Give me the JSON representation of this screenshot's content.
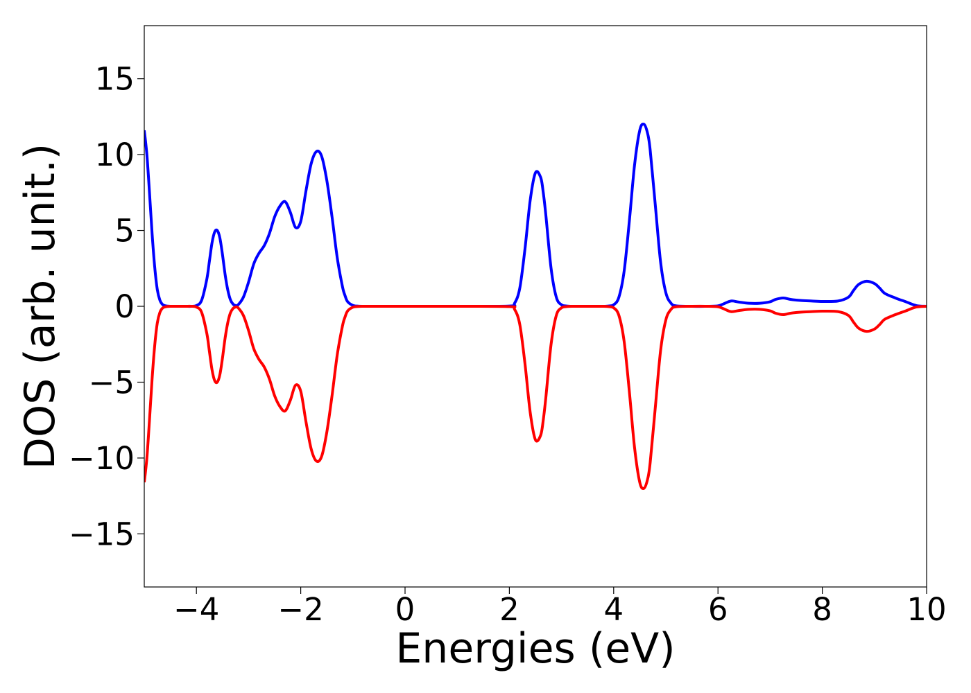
{
  "chart_data": {
    "type": "line",
    "title": "",
    "xlabel": "Energies (eV)",
    "ylabel": "DOS (arb. unit.)",
    "xlim": [
      -5,
      10
    ],
    "ylim": [
      -18.5,
      18.5
    ],
    "xticks": [
      -4,
      -2,
      0,
      2,
      4,
      6,
      8,
      10
    ],
    "xtick_labels": [
      "−4",
      "−2",
      "0",
      "2",
      "4",
      "6",
      "8",
      "10"
    ],
    "yticks": [
      -15,
      -10,
      -5,
      0,
      5,
      10,
      15
    ],
    "ytick_labels": [
      "−15",
      "−10",
      "−5",
      "0",
      "5",
      "10",
      "15"
    ],
    "grid": false,
    "legend": "none",
    "series": [
      {
        "color": "#0000ff",
        "x": [
          -5.0,
          -4.95,
          -4.9,
          -4.85,
          -4.8,
          -4.75,
          -4.7,
          -4.65,
          -4.6,
          -4.55,
          -4.5,
          -4.4,
          -4.3,
          -4.2,
          -4.1,
          -4.0,
          -3.9,
          -3.8,
          -3.75,
          -3.7,
          -3.65,
          -3.6,
          -3.55,
          -3.5,
          -3.45,
          -3.4,
          -3.35,
          -3.3,
          -3.25,
          -3.2,
          -3.1,
          -3.0,
          -2.9,
          -2.8,
          -2.7,
          -2.6,
          -2.5,
          -2.4,
          -2.3,
          -2.2,
          -2.1,
          -2.0,
          -1.9,
          -1.8,
          -1.7,
          -1.6,
          -1.5,
          -1.4,
          -1.3,
          -1.2,
          -1.15,
          -1.1,
          -1.0,
          -0.9,
          -0.8,
          -0.7,
          -0.6,
          -0.5,
          0.0,
          1.0,
          2.0,
          2.1,
          2.2,
          2.3,
          2.4,
          2.5,
          2.6,
          2.65,
          2.7,
          2.8,
          2.9,
          3.0,
          3.1,
          3.2,
          3.5,
          3.8,
          3.9,
          4.0,
          4.1,
          4.2,
          4.3,
          4.4,
          4.5,
          4.58,
          4.65,
          4.7,
          4.8,
          4.9,
          5.0,
          5.1,
          5.2,
          5.5,
          5.8,
          6.0,
          6.1,
          6.25,
          6.4,
          6.6,
          6.8,
          7.0,
          7.1,
          7.25,
          7.4,
          7.6,
          7.8,
          8.0,
          8.3,
          8.5,
          8.6,
          8.7,
          8.85,
          9.0,
          9.1,
          9.2,
          9.4,
          9.6,
          9.8,
          10.0
        ],
        "y": [
          11.6,
          10.0,
          7.5,
          4.8,
          2.6,
          1.1,
          0.4,
          0.12,
          0.04,
          0.01,
          0.0,
          0.0,
          0.0,
          0.0,
          0.0,
          0.05,
          0.4,
          1.8,
          3.0,
          4.2,
          4.9,
          5.0,
          4.5,
          3.4,
          2.1,
          1.1,
          0.45,
          0.15,
          0.05,
          0.1,
          0.6,
          1.6,
          2.8,
          3.5,
          4.0,
          4.8,
          5.9,
          6.6,
          6.9,
          6.2,
          5.2,
          5.6,
          7.6,
          9.4,
          10.2,
          9.9,
          8.3,
          5.9,
          3.2,
          1.3,
          0.7,
          0.3,
          0.06,
          0.01,
          0.0,
          0.0,
          0.0,
          0.0,
          0.0,
          0.0,
          0.02,
          0.2,
          1.2,
          3.8,
          7.0,
          8.8,
          8.5,
          7.5,
          6.0,
          2.5,
          0.6,
          0.1,
          0.02,
          0.0,
          0.0,
          0.0,
          0.02,
          0.1,
          0.6,
          2.3,
          5.6,
          9.3,
          11.6,
          12.0,
          11.4,
          10.3,
          6.6,
          2.9,
          0.9,
          0.2,
          0.03,
          0.0,
          0.0,
          0.03,
          0.15,
          0.35,
          0.28,
          0.2,
          0.2,
          0.3,
          0.45,
          0.55,
          0.45,
          0.38,
          0.35,
          0.32,
          0.35,
          0.6,
          1.05,
          1.45,
          1.65,
          1.5,
          1.2,
          0.85,
          0.55,
          0.3,
          0.05,
          0.0
        ]
      },
      {
        "color": "#ff0000",
        "x": [
          -5.0,
          -4.95,
          -4.9,
          -4.85,
          -4.8,
          -4.75,
          -4.7,
          -4.65,
          -4.6,
          -4.55,
          -4.5,
          -4.4,
          -4.3,
          -4.2,
          -4.1,
          -4.0,
          -3.9,
          -3.8,
          -3.75,
          -3.7,
          -3.65,
          -3.6,
          -3.55,
          -3.5,
          -3.45,
          -3.4,
          -3.35,
          -3.3,
          -3.25,
          -3.2,
          -3.1,
          -3.0,
          -2.9,
          -2.8,
          -2.7,
          -2.6,
          -2.5,
          -2.4,
          -2.3,
          -2.2,
          -2.1,
          -2.0,
          -1.9,
          -1.8,
          -1.7,
          -1.6,
          -1.5,
          -1.4,
          -1.3,
          -1.2,
          -1.15,
          -1.1,
          -1.0,
          -0.9,
          -0.8,
          -0.7,
          -0.6,
          -0.5,
          0.0,
          1.0,
          2.0,
          2.1,
          2.2,
          2.3,
          2.4,
          2.5,
          2.6,
          2.65,
          2.7,
          2.8,
          2.9,
          3.0,
          3.1,
          3.2,
          3.5,
          3.8,
          3.9,
          4.0,
          4.1,
          4.2,
          4.3,
          4.4,
          4.5,
          4.58,
          4.65,
          4.7,
          4.8,
          4.9,
          5.0,
          5.1,
          5.2,
          5.5,
          5.8,
          6.0,
          6.1,
          6.25,
          6.4,
          6.6,
          6.8,
          7.0,
          7.1,
          7.25,
          7.4,
          7.6,
          7.8,
          8.0,
          8.3,
          8.5,
          8.6,
          8.7,
          8.85,
          9.0,
          9.1,
          9.2,
          9.4,
          9.6,
          9.8,
          10.0
        ],
        "y": [
          -11.6,
          -10.0,
          -7.5,
          -4.8,
          -2.6,
          -1.1,
          -0.4,
          -0.12,
          -0.04,
          -0.01,
          0.0,
          0.0,
          0.0,
          0.0,
          0.0,
          -0.05,
          -0.4,
          -1.8,
          -3.0,
          -4.2,
          -4.9,
          -5.0,
          -4.5,
          -3.4,
          -2.1,
          -1.1,
          -0.45,
          -0.15,
          -0.05,
          -0.1,
          -0.6,
          -1.6,
          -2.8,
          -3.5,
          -4.0,
          -4.8,
          -5.9,
          -6.6,
          -6.9,
          -6.2,
          -5.2,
          -5.6,
          -7.6,
          -9.4,
          -10.2,
          -9.9,
          -8.3,
          -5.9,
          -3.2,
          -1.3,
          -0.7,
          -0.3,
          -0.06,
          -0.01,
          0.0,
          0.0,
          0.0,
          0.0,
          0.0,
          0.0,
          -0.02,
          -0.2,
          -1.2,
          -3.8,
          -7.0,
          -8.8,
          -8.5,
          -7.5,
          -6.0,
          -2.5,
          -0.6,
          -0.1,
          -0.02,
          0.0,
          0.0,
          0.0,
          -0.02,
          -0.1,
          -0.6,
          -2.3,
          -5.6,
          -9.3,
          -11.6,
          -12.0,
          -11.4,
          -10.3,
          -6.6,
          -2.9,
          -0.9,
          -0.2,
          -0.03,
          0.0,
          0.0,
          -0.03,
          -0.15,
          -0.35,
          -0.28,
          -0.2,
          -0.2,
          -0.3,
          -0.45,
          -0.55,
          -0.45,
          -0.38,
          -0.35,
          -0.32,
          -0.35,
          -0.6,
          -1.05,
          -1.45,
          -1.65,
          -1.5,
          -1.2,
          -0.85,
          -0.55,
          -0.3,
          -0.05,
          0.0
        ]
      }
    ]
  }
}
